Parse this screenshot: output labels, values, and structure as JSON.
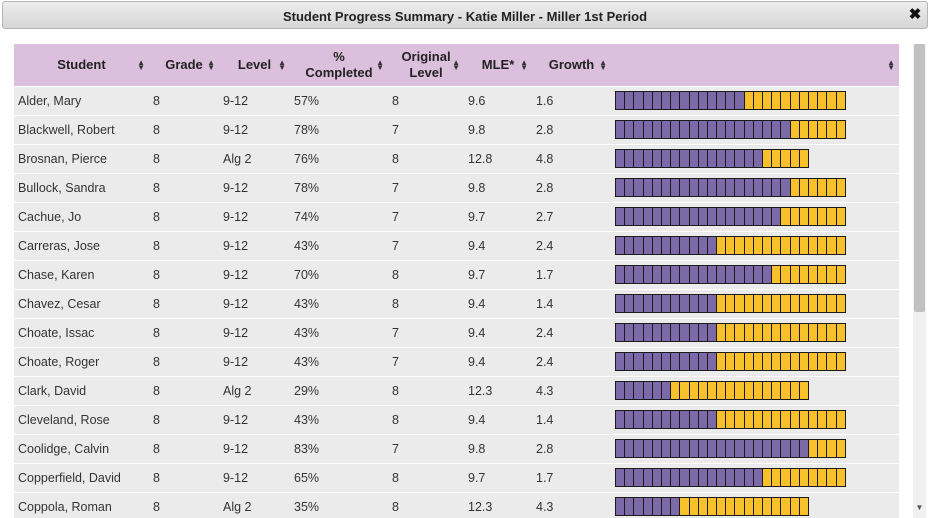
{
  "dialog": {
    "title": "Student Progress Summary - Katie Miller - Miller 1st Period",
    "close_icon": "close-icon"
  },
  "colors": {
    "header_bg": "#dcbfdc",
    "completed": "#7c6aa8",
    "remaining": "#f8c02a",
    "row_bg": "#ebebeb"
  },
  "columns": [
    "Student",
    "Grade",
    "Level",
    "% Completed",
    "Original Level",
    "MLE*",
    "Growth",
    ""
  ],
  "rows": [
    {
      "student": "Alder, Mary",
      "grade": "8",
      "level": "9-12",
      "completed": "57%",
      "original": "8",
      "mle": "9.6",
      "growth": "1.6",
      "filled": 14,
      "total": 25
    },
    {
      "student": "Blackwell, Robert",
      "grade": "8",
      "level": "9-12",
      "completed": "78%",
      "original": "7",
      "mle": "9.8",
      "growth": "2.8",
      "filled": 19,
      "total": 25
    },
    {
      "student": "Brosnan, Pierce",
      "grade": "8",
      "level": "Alg 2",
      "completed": "76%",
      "original": "8",
      "mle": "12.8",
      "growth": "4.8",
      "filled": 16,
      "total": 21
    },
    {
      "student": "Bullock, Sandra",
      "grade": "8",
      "level": "9-12",
      "completed": "78%",
      "original": "7",
      "mle": "9.8",
      "growth": "2.8",
      "filled": 19,
      "total": 25
    },
    {
      "student": "Cachue, Jo",
      "grade": "8",
      "level": "9-12",
      "completed": "74%",
      "original": "7",
      "mle": "9.7",
      "growth": "2.7",
      "filled": 18,
      "total": 25
    },
    {
      "student": "Carreras, Jose",
      "grade": "8",
      "level": "9-12",
      "completed": "43%",
      "original": "7",
      "mle": "9.4",
      "growth": "2.4",
      "filled": 11,
      "total": 25
    },
    {
      "student": "Chase, Karen",
      "grade": "8",
      "level": "9-12",
      "completed": "70%",
      "original": "8",
      "mle": "9.7",
      "growth": "1.7",
      "filled": 17,
      "total": 25
    },
    {
      "student": "Chavez, Cesar",
      "grade": "8",
      "level": "9-12",
      "completed": "43%",
      "original": "8",
      "mle": "9.4",
      "growth": "1.4",
      "filled": 11,
      "total": 25
    },
    {
      "student": "Choate, Issac",
      "grade": "8",
      "level": "9-12",
      "completed": "43%",
      "original": "7",
      "mle": "9.4",
      "growth": "2.4",
      "filled": 11,
      "total": 25
    },
    {
      "student": "Choate, Roger",
      "grade": "8",
      "level": "9-12",
      "completed": "43%",
      "original": "7",
      "mle": "9.4",
      "growth": "2.4",
      "filled": 11,
      "total": 25
    },
    {
      "student": "Clark, David",
      "grade": "8",
      "level": "Alg 2",
      "completed": "29%",
      "original": "8",
      "mle": "12.3",
      "growth": "4.3",
      "filled": 6,
      "total": 21
    },
    {
      "student": "Cleveland, Rose",
      "grade": "8",
      "level": "9-12",
      "completed": "43%",
      "original": "8",
      "mle": "9.4",
      "growth": "1.4",
      "filled": 11,
      "total": 25
    },
    {
      "student": "Coolidge, Calvin",
      "grade": "8",
      "level": "9-12",
      "completed": "83%",
      "original": "7",
      "mle": "9.8",
      "growth": "2.8",
      "filled": 21,
      "total": 25
    },
    {
      "student": "Copperfield, David",
      "grade": "8",
      "level": "9-12",
      "completed": "65%",
      "original": "8",
      "mle": "9.7",
      "growth": "1.7",
      "filled": 16,
      "total": 25
    },
    {
      "student": "Coppola, Roman",
      "grade": "8",
      "level": "Alg 2",
      "completed": "35%",
      "original": "8",
      "mle": "12.3",
      "growth": "4.3",
      "filled": 7,
      "total": 21
    }
  ]
}
